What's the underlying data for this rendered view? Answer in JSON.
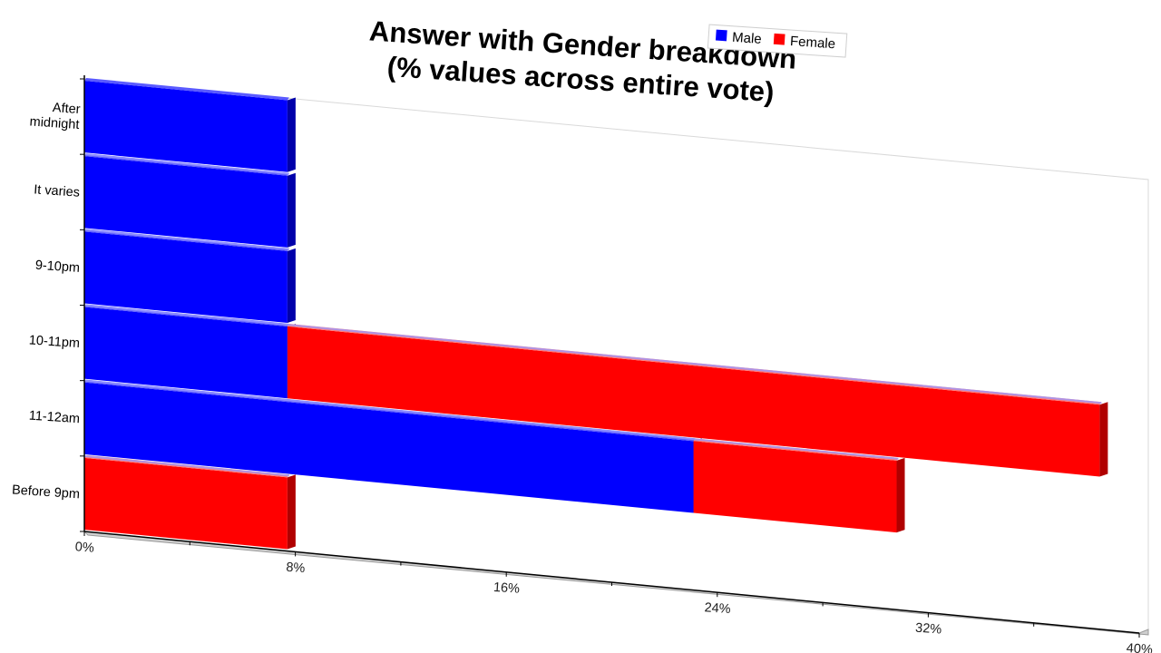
{
  "chart_data": {
    "type": "bar",
    "orientation": "horizontal",
    "stacked": true,
    "title": "Answer with Gender breakdown",
    "subtitle": "(% values across entire vote)",
    "categories": [
      "After midnight",
      "It varies",
      "9-10pm",
      "10-11pm",
      "11-12am",
      "Before 9pm"
    ],
    "category_lines": [
      [
        "After",
        "midnight"
      ],
      [
        "It varies"
      ],
      [
        "9-10pm"
      ],
      [
        "10-11pm"
      ],
      [
        "11-12am"
      ],
      [
        "Before 9pm"
      ]
    ],
    "series": [
      {
        "name": "Male",
        "color": "#0000ff",
        "values": [
          7.7,
          7.7,
          7.7,
          7.7,
          23.1,
          0
        ]
      },
      {
        "name": "Female",
        "color": "#ff0000",
        "values": [
          0,
          0,
          0,
          30.8,
          7.7,
          7.7
        ]
      }
    ],
    "xlim": [
      0,
      40
    ],
    "xticks": [
      "0%",
      "8%",
      "16%",
      "24%",
      "32%",
      "40%"
    ],
    "xtick_values": [
      0,
      8,
      16,
      24,
      32,
      40
    ],
    "legend": {
      "position": "top-right",
      "entries": [
        "Male",
        "Female"
      ]
    },
    "style": "3d-perspective"
  }
}
